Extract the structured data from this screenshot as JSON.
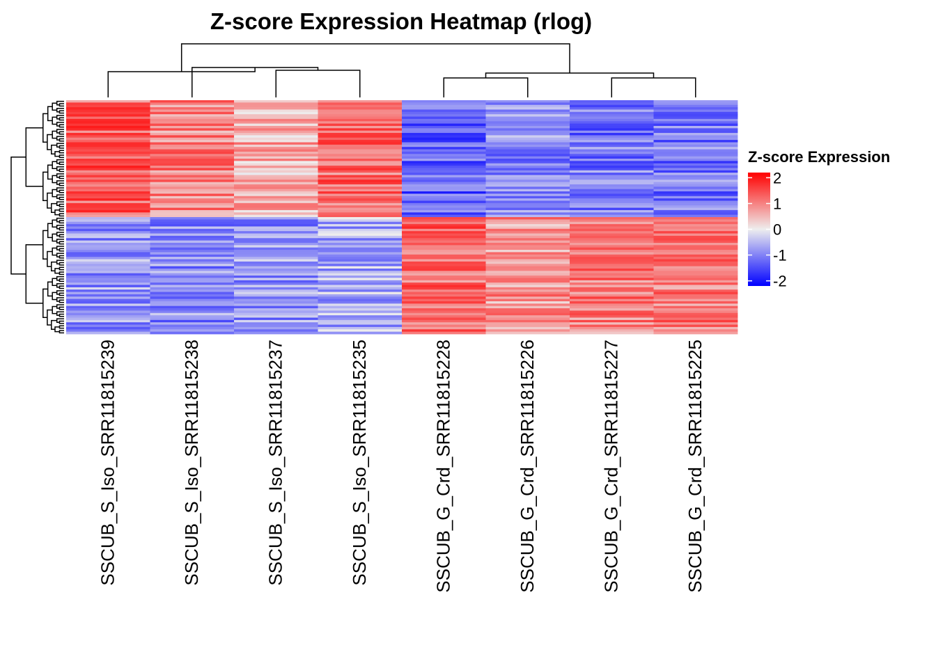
{
  "chart_data": {
    "type": "heatmap",
    "title": "Z-score Expression Heatmap (rlog)",
    "columns": [
      "SSCUB_S_Iso_SRR11815239",
      "SSCUB_S_Iso_SRR11815238",
      "SSCUB_S_Iso_SRR11815237",
      "SSCUB_S_Iso_SRR11815235",
      "SSCUB_G_Crd_SRR11815228",
      "SSCUB_G_Crd_SRR11815226",
      "SSCUB_G_Crd_SRR11815227",
      "SSCUB_G_Crd_SRR11815225"
    ],
    "column_groups": [
      "S_Iso",
      "S_Iso",
      "S_Iso",
      "S_Iso",
      "G_Crd",
      "G_Crd",
      "G_Crd",
      "G_Crd"
    ],
    "row_count": 100,
    "row_blocks": [
      {
        "rows": "1-50",
        "mean_zscore": [
          1.3,
          1.0,
          0.6,
          1.2,
          -1.3,
          -0.9,
          -1.1,
          -1.1
        ]
      },
      {
        "rows": "51-100",
        "mean_zscore": [
          -0.8,
          -0.9,
          -0.8,
          -0.6,
          1.2,
          0.8,
          1.0,
          1.1
        ]
      }
    ],
    "legend": {
      "title": "Z-score Expression",
      "ticks": [
        2,
        1,
        0,
        -1,
        -2
      ],
      "tick_labels": [
        "2",
        "1",
        "0",
        "-1",
        "-2"
      ],
      "range": [
        -2.2,
        2.2
      ],
      "low_color": "#0000FF",
      "mid_color": "#EEEEEE",
      "high_color": "#FF0000"
    },
    "column_clustering": "two clusters: S_Iso (239,238,237,235) and G_Crd (228,226,227,225)",
    "row_clustering": "two main clusters"
  }
}
